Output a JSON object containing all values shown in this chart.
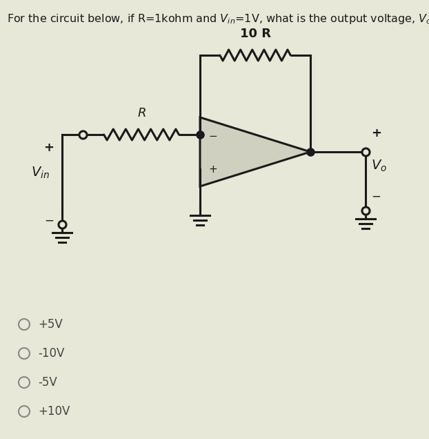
{
  "title_text": "For the circuit below, if R=1kohm and $V_{in}$=1V, what is the output voltage, $V_o$?",
  "bg_color": "#e8e8d8",
  "circuit_color": "#1a1a1a",
  "choices": [
    "+5V",
    "-10V",
    "-5V",
    "+10V"
  ],
  "label_Vin": "$V_{in}$",
  "label_Vo": "$V_o$",
  "label_R": "$R$",
  "label_10R": "10 R"
}
